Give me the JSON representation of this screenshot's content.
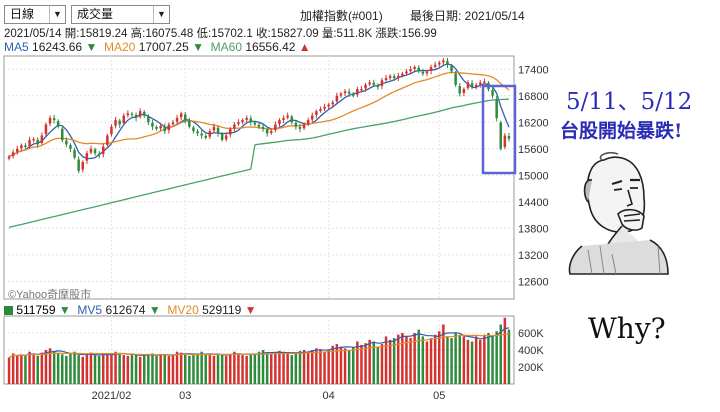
{
  "toolbar": {
    "period": "日線",
    "indicator": "成交量"
  },
  "index_name": "加權指數(#001)",
  "last_date_label": "最後日期: 2021/05/14",
  "quote": {
    "date": "2021/05/14",
    "open": "開:15819.24",
    "high": "高:16075.48",
    "low": "低:15702.1",
    "close": "收:15827.09",
    "amount": "量:511.8K",
    "change": "漲跌:156.99"
  },
  "ma_legend": [
    {
      "name": "MA5",
      "value": "16243.66",
      "arrow": "▼",
      "color": "#2f5fb0"
    },
    {
      "name": "MA20",
      "value": "17007.25",
      "arrow": "▼",
      "color": "#e58a2a"
    },
    {
      "name": "MA60",
      "value": "16556.42",
      "arrow": "▲",
      "color": "#4aa067"
    }
  ],
  "vol_legend": [
    {
      "name": "量",
      "value": "511759",
      "arrow": "▼",
      "color": "#2a8a3a"
    },
    {
      "name": "MV5",
      "value": "612674",
      "arrow": "▼",
      "color": "#2f5fb0"
    },
    {
      "name": "MV20",
      "value": "529119",
      "arrow": "▼",
      "color": "#e58a2a"
    }
  ],
  "watermark": "©Yahoo奇摩股市",
  "price_axis": [
    "17400",
    "16800",
    "16200",
    "15600",
    "15000",
    "14400",
    "13800",
    "13200",
    "12600"
  ],
  "volume_axis": [
    "600K",
    "400K",
    "200K"
  ],
  "x_axis": [
    "2021/02",
    "03",
    "04",
    "05"
  ],
  "annotation": {
    "line1": "5/11、5/12",
    "line2": "台股開始暴跌!",
    "why": "Why?"
  },
  "colors": {
    "up": "#d4322f",
    "down": "#2e8b3c",
    "highlight": "#5d63d6"
  },
  "chart_data": {
    "type": "candlestick",
    "price_ylim": [
      12200,
      17700
    ],
    "price_ticks": [
      17400,
      16800,
      16200,
      15600,
      15000,
      14400,
      13800,
      13200,
      12600
    ],
    "volume_ylim": [
      0,
      800000
    ],
    "volume_ticks": [
      600000,
      400000,
      200000
    ],
    "x_ticks": [
      {
        "label": "2021/02",
        "index": 25
      },
      {
        "label": "03",
        "index": 43
      },
      {
        "label": "04",
        "index": 78
      },
      {
        "label": "05",
        "index": 105
      }
    ],
    "closes": [
      15420,
      15520,
      15600,
      15680,
      15640,
      15800,
      15820,
      15700,
      15900,
      16150,
      16300,
      16250,
      16100,
      15800,
      15700,
      15600,
      15400,
      15100,
      15300,
      15500,
      15600,
      15500,
      15450,
      15650,
      15900,
      16100,
      16250,
      16150,
      16350,
      16400,
      16380,
      16300,
      16450,
      16350,
      16200,
      16100,
      16050,
      16120,
      16000,
      16150,
      16200,
      16300,
      16400,
      16250,
      16100,
      16000,
      15950,
      15900,
      15850,
      16000,
      16100,
      15950,
      15800,
      15900,
      16050,
      16150,
      16200,
      16250,
      16300,
      16200,
      16150,
      16100,
      16050,
      15950,
      16000,
      16150,
      16250,
      16300,
      16350,
      16200,
      16100,
      16050,
      16150,
      16250,
      16350,
      16450,
      16500,
      16550,
      16600,
      16650,
      16800,
      16850,
      16900,
      16850,
      16800,
      16950,
      16950,
      17050,
      17100,
      17050,
      17000,
      17150,
      17200,
      17250,
      17200,
      17250,
      17300,
      17350,
      17400,
      17450,
      17350,
      17300,
      17350,
      17450,
      17500,
      17550,
      17600,
      17500,
      17350,
      17050,
      16850,
      16950,
      17100,
      17000,
      17050,
      17100,
      17120,
      16950,
      16800,
      16300,
      15600,
      15900,
      15827
    ]
  },
  "volume_data": [
    310,
    360,
    340,
    350,
    330,
    380,
    360,
    330,
    370,
    400,
    420,
    390,
    370,
    350,
    330,
    360,
    380,
    340,
    320,
    350,
    370,
    340,
    330,
    340,
    350,
    360,
    380,
    350,
    340,
    330,
    360,
    340,
    320,
    340,
    350,
    360,
    330,
    340,
    350,
    330,
    340,
    380,
    370,
    350,
    330,
    340,
    360,
    380,
    350,
    340,
    330,
    360,
    350,
    330,
    350,
    380,
    360,
    340,
    330,
    350,
    360,
    380,
    400,
    360,
    350,
    370,
    390,
    380,
    360,
    340,
    370,
    390,
    400,
    380,
    400,
    420,
    410,
    380,
    400,
    450,
    470,
    440,
    420,
    400,
    430,
    500,
    460,
    480,
    520,
    500,
    440,
    470,
    560,
    520,
    540,
    580,
    600,
    560,
    540,
    600,
    640,
    560,
    500,
    540,
    580,
    620,
    700,
    560,
    540,
    600,
    580,
    560,
    520,
    500,
    560,
    520,
    580,
    600,
    560,
    620,
    700,
    780,
    640
  ]
}
